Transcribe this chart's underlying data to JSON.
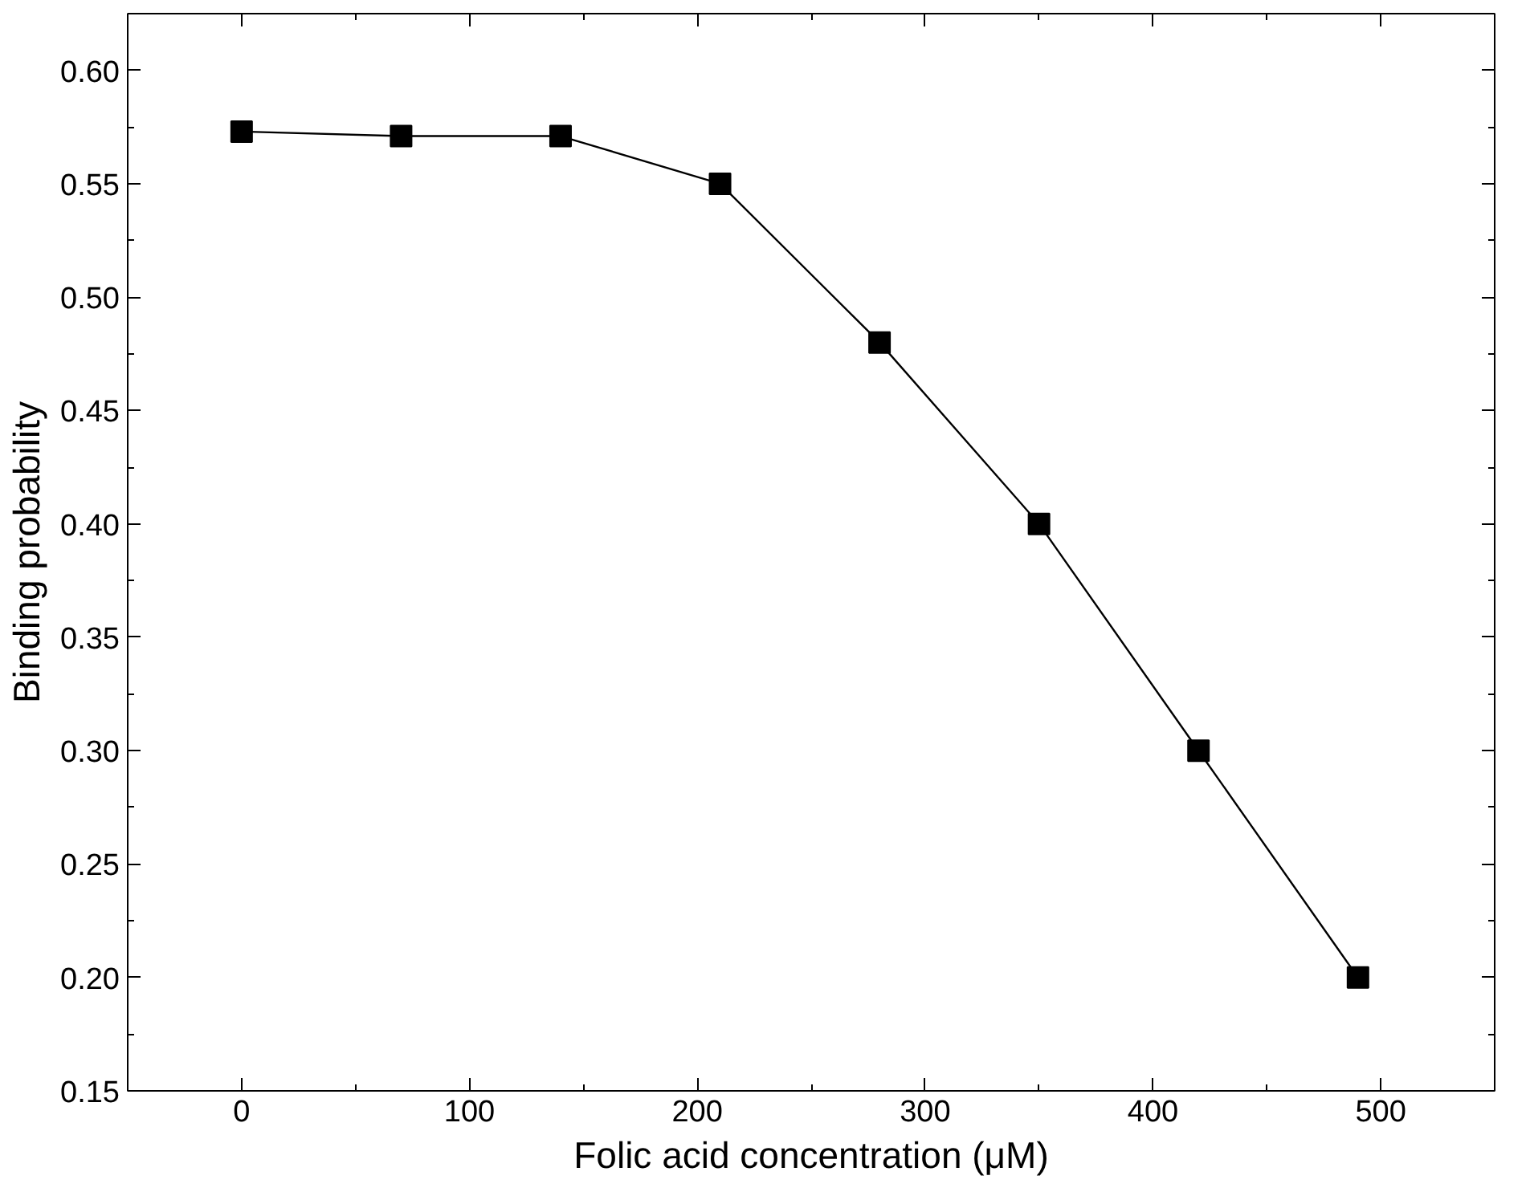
{
  "chart_data": {
    "type": "line",
    "xlabel": "Folic acid concentration (μM)",
    "ylabel": "Binding probability",
    "x": [
      0,
      70,
      140,
      210,
      280,
      350,
      420,
      490
    ],
    "series": [
      {
        "color": "#000000",
        "values": [
          0.573,
          0.571,
          0.571,
          0.55,
          0.48,
          0.4,
          0.3,
          0.2
        ]
      }
    ],
    "xlim": [
      -50,
      550
    ],
    "xticks": [
      0,
      100,
      200,
      300,
      400,
      500
    ],
    "ylim": [
      0.15,
      0.625
    ],
    "yticks": [
      {
        "value": 0.15,
        "label": "0.15"
      },
      {
        "value": 0.2,
        "label": "0.20"
      },
      {
        "value": 0.25,
        "label": "0.25"
      },
      {
        "value": 0.3,
        "label": "0.30"
      },
      {
        "value": 0.35,
        "label": "0.35"
      },
      {
        "value": 0.4,
        "label": "0.40"
      },
      {
        "value": 0.45,
        "label": "0.45"
      },
      {
        "value": 0.5,
        "label": "0.50"
      },
      {
        "value": 0.55,
        "label": "0.55"
      },
      {
        "value": 0.6,
        "label": "0.60"
      }
    ],
    "grid": false,
    "marker": "square",
    "line_style": "solid"
  }
}
